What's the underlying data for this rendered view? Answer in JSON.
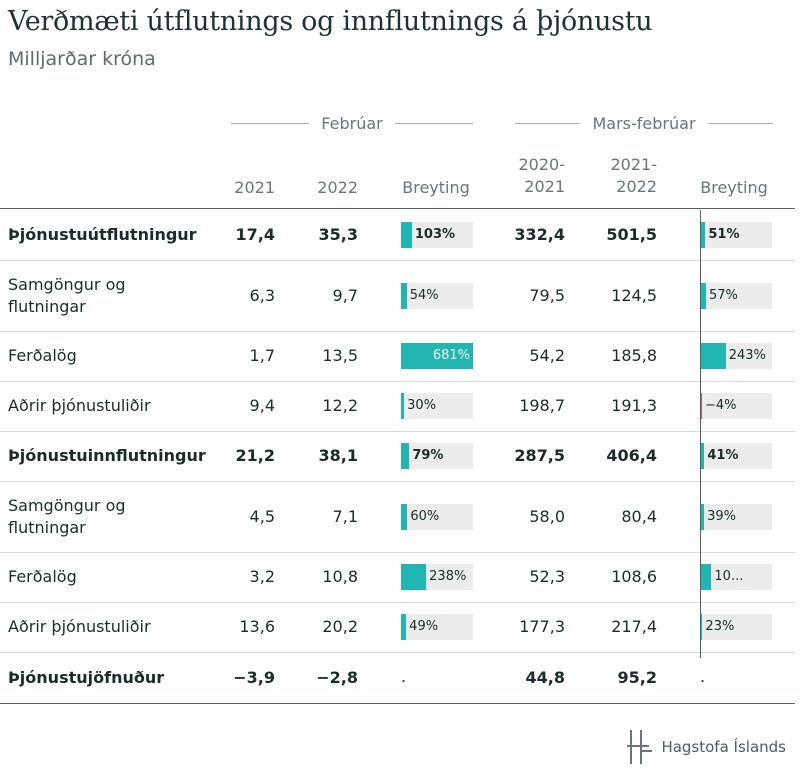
{
  "title": "Verðmæti útflutnings og innflutnings á þjónustu",
  "subtitle": "Milljarðar króna",
  "groups": {
    "feb": "Febrúar",
    "marsfeb": "Mars-febrúar"
  },
  "columns": {
    "c2021": "2021",
    "c2022": "2022",
    "breyting1": "Breyting",
    "c2020_2021_a": "2020-",
    "c2020_2021_b": "2021",
    "c2021_2022_a": "2021-",
    "c2021_2022_b": "2022",
    "breyting2": "Breyting"
  },
  "rows": [
    {
      "label": "Þjónustuútflutningur",
      "bold": true,
      "v1": "17,4",
      "v2": "35,3",
      "b1": {
        "pct": 103,
        "text": "103%"
      },
      "v3": "332,4",
      "v4": "501,5",
      "b2": {
        "pct": 51,
        "text": "51%"
      }
    },
    {
      "label": "Samgöngur og flutningar",
      "bold": false,
      "v1": "6,3",
      "v2": "9,7",
      "b1": {
        "pct": 54,
        "text": "54%"
      },
      "v3": "79,5",
      "v4": "124,5",
      "b2": {
        "pct": 57,
        "text": "57%"
      }
    },
    {
      "label": "Ferðalög",
      "bold": false,
      "v1": "1,7",
      "v2": "13,5",
      "b1": {
        "pct": 681,
        "text": "681%"
      },
      "v3": "54,2",
      "v4": "185,8",
      "b2": {
        "pct": 243,
        "text": "243%"
      }
    },
    {
      "label": "Aðrir þjónustuliðir",
      "bold": false,
      "v1": "9,4",
      "v2": "12,2",
      "b1": {
        "pct": 30,
        "text": "30%"
      },
      "v3": "198,7",
      "v4": "191,3",
      "b2": {
        "pct": -4,
        "text": "−4%"
      }
    },
    {
      "label": "Þjónustuinnflutningur",
      "bold": true,
      "v1": "21,2",
      "v2": "38,1",
      "b1": {
        "pct": 79,
        "text": "79%"
      },
      "v3": "287,5",
      "v4": "406,4",
      "b2": {
        "pct": 41,
        "text": "41%"
      }
    },
    {
      "label": "Samgöngur og flutningar",
      "bold": false,
      "v1": "4,5",
      "v2": "7,1",
      "b1": {
        "pct": 60,
        "text": "60%"
      },
      "v3": "58,0",
      "v4": "80,4",
      "b2": {
        "pct": 39,
        "text": "39%"
      }
    },
    {
      "label": "Ferðalög",
      "bold": false,
      "v1": "3,2",
      "v2": "10,8",
      "b1": {
        "pct": 238,
        "text": "238%"
      },
      "v3": "52,3",
      "v4": "108,6",
      "b2": {
        "pct": 108,
        "text": "10..."
      }
    },
    {
      "label": "Aðrir þjónustuliðir",
      "bold": false,
      "v1": "13,6",
      "v2": "20,2",
      "b1": {
        "pct": 49,
        "text": "49%"
      },
      "v3": "177,3",
      "v4": "217,4",
      "b2": {
        "pct": 23,
        "text": "23%"
      }
    },
    {
      "label": "Þjónustujöfnuður",
      "bold": true,
      "v1": "−3,9",
      "v2": "−2,8",
      "b1": {
        "pct": null,
        "text": "."
      },
      "v3": "44,8",
      "v4": "95,2",
      "b2": {
        "pct": null,
        "text": "."
      }
    }
  ],
  "footer": {
    "brand": "Hagstofa Íslands",
    "logo_icon": "hagstofa-logo-icon"
  },
  "colors": {
    "bar": "#22b6b2",
    "bar_negative": "#b8586f",
    "bar_track": "#ececec"
  }
}
